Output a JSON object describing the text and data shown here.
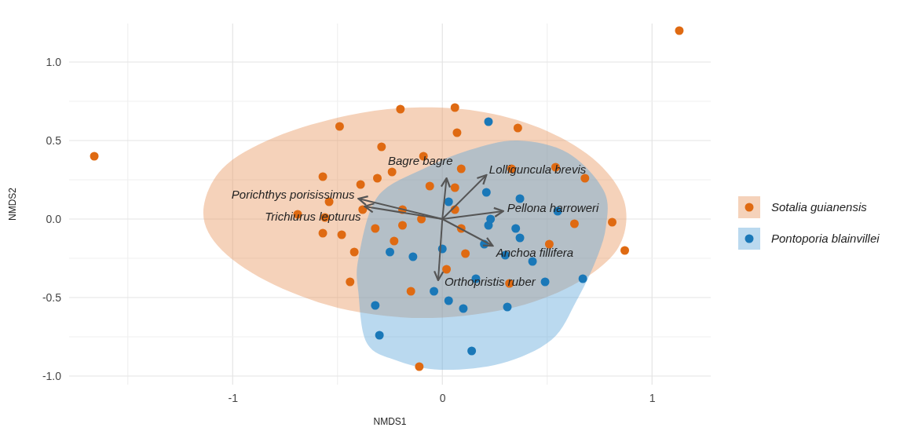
{
  "chart_data": {
    "type": "scatter",
    "xlabel": "NMDS1",
    "ylabel": "NMDS2",
    "xlim": [
      -1.78,
      1.28
    ],
    "ylim": [
      -1.055,
      1.245
    ],
    "xticks": [
      {
        "value": -1.5,
        "label": null
      },
      -1,
      {
        "value": -0.5,
        "label": null
      },
      0,
      {
        "value": 0.5,
        "label": null
      },
      1
    ],
    "yticks": [
      {
        "value": -1,
        "label": "-1.0"
      },
      {
        "value": -0.75,
        "label": null
      },
      {
        "value": -0.5,
        "label": "-0.5"
      },
      {
        "value": -0.25,
        "label": null
      },
      {
        "value": 0,
        "label": "0.0"
      },
      {
        "value": 0.25,
        "label": null
      },
      {
        "value": 0.5,
        "label": "0.5"
      },
      {
        "value": 0.75,
        "label": null
      },
      {
        "value": 1,
        "label": "1.0"
      }
    ],
    "grid": true,
    "legend": "right",
    "series": [
      {
        "type": "area",
        "color": "#e8945a",
        "x": [
          -1.14,
          -1.05,
          -0.8,
          -0.45,
          -0.13,
          0.2,
          0.5,
          0.74,
          0.87,
          0.84,
          0.65,
          0.35,
          -0.05,
          -0.45,
          -0.8,
          -1.05
        ],
        "values": [
          0.04,
          0.32,
          0.52,
          0.66,
          0.71,
          0.68,
          0.56,
          0.36,
          0.1,
          -0.18,
          -0.4,
          -0.56,
          -0.63,
          -0.58,
          -0.42,
          -0.2
        ]
      },
      {
        "type": "area",
        "color": "#5aa5d8",
        "x": [
          0.36,
          0.6,
          0.77,
          0.78,
          0.73,
          0.64,
          0.52,
          0.28,
          -0.01,
          -0.22,
          -0.36,
          -0.4,
          -0.4,
          -0.31,
          -0.09,
          0.13
        ],
        "values": [
          0.5,
          0.42,
          0.18,
          -0.05,
          -0.27,
          -0.52,
          -0.77,
          -0.92,
          -0.96,
          -0.9,
          -0.79,
          -0.47,
          -0.25,
          0.14,
          0.32,
          0.44
        ]
      },
      {
        "name": "Sotalia guianensis",
        "color": "#df6a12",
        "marker": "circle",
        "x": [
          -1.66,
          1.13,
          0.06,
          -0.2,
          -0.49,
          0.07,
          0.36,
          -0.29,
          -0.09,
          -0.57,
          -0.31,
          -0.24,
          0.09,
          0.33,
          0.54,
          0.68,
          -0.54,
          -0.39,
          -0.69,
          -0.56,
          -0.38,
          -0.57,
          -0.48,
          -0.19,
          -0.19,
          -0.1,
          -0.06,
          0.06,
          0.06,
          -0.32,
          0.09,
          -0.23,
          -0.42,
          -0.44,
          0.11,
          0.02,
          0.32,
          -0.15,
          -0.11,
          0.63,
          0.81,
          0.87,
          0.51
        ],
        "values": [
          0.4,
          1.2,
          0.71,
          0.7,
          0.59,
          0.55,
          0.58,
          0.46,
          0.4,
          0.27,
          0.26,
          0.3,
          0.32,
          0.32,
          0.33,
          0.26,
          0.11,
          0.22,
          0.03,
          0.01,
          0.06,
          -0.09,
          -0.1,
          0.06,
          -0.04,
          0.0,
          0.21,
          0.2,
          0.06,
          -0.06,
          -0.06,
          -0.14,
          -0.21,
          -0.4,
          -0.22,
          -0.32,
          -0.41,
          -0.46,
          -0.94,
          -0.03,
          -0.02,
          -0.2,
          -0.16
        ]
      },
      {
        "name": "Pontoporia blainvillei",
        "color": "#1a78b8",
        "marker": "circle",
        "x": [
          0.22,
          0.21,
          0.03,
          0.37,
          0.23,
          0.22,
          0.55,
          0.35,
          0.37,
          0.2,
          0.0,
          0.3,
          0.43,
          0.16,
          0.49,
          0.67,
          0.03,
          0.1,
          0.31,
          0.14,
          -0.25,
          -0.14,
          -0.32,
          -0.3,
          -0.04
        ],
        "values": [
          0.62,
          0.17,
          0.11,
          0.13,
          0.0,
          -0.04,
          0.05,
          -0.06,
          -0.12,
          -0.16,
          -0.19,
          -0.23,
          -0.27,
          -0.38,
          -0.4,
          -0.38,
          -0.52,
          -0.57,
          -0.56,
          -0.84,
          -0.21,
          -0.24,
          -0.55,
          -0.74,
          -0.46
        ]
      },
      {
        "type": "line",
        "name": "Porichthys porisissimus",
        "color": "#555555",
        "x": [
          0,
          -0.4
        ],
        "values": [
          0,
          0.13
        ]
      },
      {
        "type": "line",
        "name": "Trichiurus lepturus",
        "color": "#555555",
        "x": [
          0,
          -0.37
        ],
        "values": [
          0,
          0.08
        ]
      },
      {
        "type": "line",
        "name": "Bagre bagre",
        "color": "#555555",
        "x": [
          0,
          0.02
        ],
        "values": [
          0,
          0.26
        ]
      },
      {
        "type": "line",
        "name": "Lolliguncula brevis",
        "color": "#555555",
        "x": [
          0,
          0.21
        ],
        "values": [
          0,
          0.28
        ]
      },
      {
        "type": "line",
        "name": "Pellona harroweri",
        "color": "#555555",
        "x": [
          0,
          0.29
        ],
        "values": [
          0,
          0.05
        ]
      },
      {
        "type": "line",
        "name": "Anchoa fillifera",
        "color": "#555555",
        "x": [
          0,
          0.24
        ],
        "values": [
          0,
          -0.17
        ]
      },
      {
        "type": "line",
        "name": "Orthopristis ruber",
        "color": "#555555",
        "x": [
          0,
          -0.02
        ],
        "values": [
          0,
          -0.39
        ]
      }
    ]
  }
}
